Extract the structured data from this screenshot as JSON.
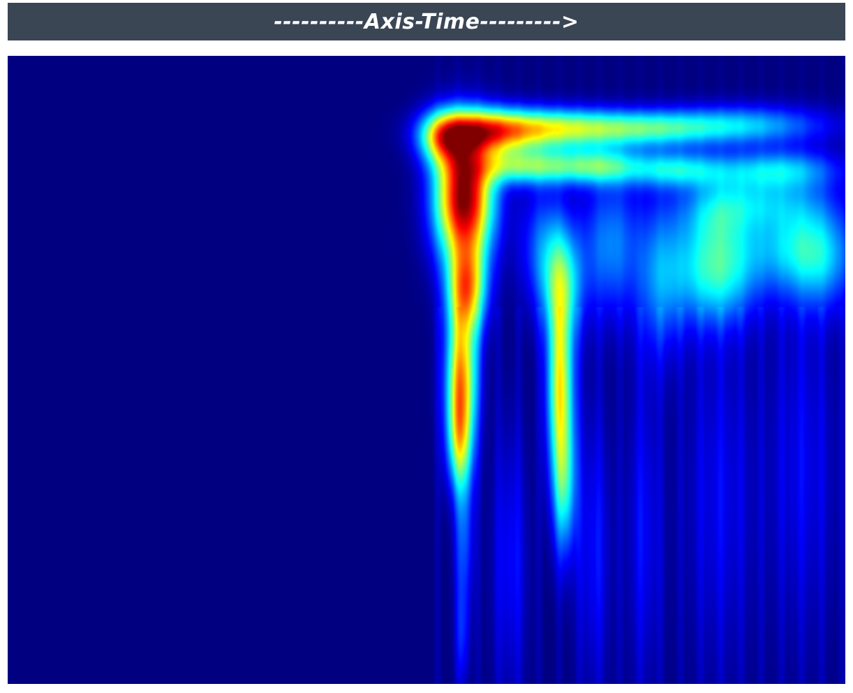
{
  "header": {
    "title": "----------Axis-Time--------->"
  },
  "chart_data": {
    "type": "heatmap",
    "title": "----------Axis-Time--------->",
    "xlabel": "",
    "ylabel": "",
    "colormap": "jet",
    "colors": {
      "background": "#00007f",
      "header": "#3a4654",
      "header_text": "#ffffff"
    },
    "grid": false,
    "legend": "none",
    "value_range": [
      0,
      1
    ],
    "xlim": [
      0,
      1
    ],
    "ylim": [
      0,
      1
    ],
    "components": [
      {
        "x": 0.545,
        "y": 0.225,
        "sx": 0.024,
        "sy": 0.07,
        "amp": 1.0
      },
      {
        "x": 0.548,
        "y": 0.37,
        "sx": 0.016,
        "sy": 0.05,
        "amp": 0.62
      },
      {
        "x": 0.542,
        "y": 0.5,
        "sx": 0.013,
        "sy": 0.07,
        "amp": 0.62
      },
      {
        "x": 0.54,
        "y": 0.61,
        "sx": 0.011,
        "sy": 0.06,
        "amp": 0.48
      },
      {
        "x": 0.545,
        "y": 0.76,
        "sx": 0.008,
        "sy": 0.09,
        "amp": 0.2
      },
      {
        "x": 0.543,
        "y": 0.93,
        "sx": 0.006,
        "sy": 0.06,
        "amp": 0.12
      },
      {
        "x": 0.57,
        "y": 0.12,
        "sx": 0.04,
        "sy": 0.025,
        "amp": 0.62
      },
      {
        "x": 0.52,
        "y": 0.13,
        "sx": 0.02,
        "sy": 0.03,
        "amp": 0.45
      },
      {
        "x": 0.65,
        "y": 0.115,
        "sx": 0.055,
        "sy": 0.022,
        "amp": 0.48
      },
      {
        "x": 0.76,
        "y": 0.115,
        "sx": 0.06,
        "sy": 0.02,
        "amp": 0.35
      },
      {
        "x": 0.88,
        "y": 0.11,
        "sx": 0.07,
        "sy": 0.022,
        "amp": 0.3
      },
      {
        "x": 0.61,
        "y": 0.175,
        "sx": 0.04,
        "sy": 0.02,
        "amp": 0.42
      },
      {
        "x": 0.7,
        "y": 0.175,
        "sx": 0.04,
        "sy": 0.02,
        "amp": 0.4
      },
      {
        "x": 0.8,
        "y": 0.18,
        "sx": 0.04,
        "sy": 0.02,
        "amp": 0.32
      },
      {
        "x": 0.92,
        "y": 0.18,
        "sx": 0.05,
        "sy": 0.022,
        "amp": 0.3
      },
      {
        "x": 0.66,
        "y": 0.52,
        "sx": 0.011,
        "sy": 0.11,
        "amp": 0.58
      },
      {
        "x": 0.662,
        "y": 0.36,
        "sx": 0.018,
        "sy": 0.06,
        "amp": 0.3
      },
      {
        "x": 0.665,
        "y": 0.69,
        "sx": 0.01,
        "sy": 0.08,
        "amp": 0.3
      },
      {
        "x": 0.64,
        "y": 0.3,
        "sx": 0.02,
        "sy": 0.07,
        "amp": 0.2
      },
      {
        "x": 0.72,
        "y": 0.3,
        "sx": 0.025,
        "sy": 0.08,
        "amp": 0.25
      },
      {
        "x": 0.78,
        "y": 0.35,
        "sx": 0.02,
        "sy": 0.09,
        "amp": 0.22
      },
      {
        "x": 0.845,
        "y": 0.34,
        "sx": 0.035,
        "sy": 0.06,
        "amp": 0.4
      },
      {
        "x": 0.845,
        "y": 0.25,
        "sx": 0.03,
        "sy": 0.04,
        "amp": 0.18
      },
      {
        "x": 0.93,
        "y": 0.3,
        "sx": 0.04,
        "sy": 0.05,
        "amp": 0.22
      },
      {
        "x": 0.97,
        "y": 0.32,
        "sx": 0.03,
        "sy": 0.06,
        "amp": 0.26
      },
      {
        "x": 0.9,
        "y": 0.23,
        "sx": 0.05,
        "sy": 0.03,
        "amp": 0.2
      },
      {
        "x": 0.6,
        "y": 0.8,
        "sx": 0.015,
        "sy": 0.15,
        "amp": 0.12
      },
      {
        "x": 0.7,
        "y": 0.78,
        "sx": 0.015,
        "sy": 0.16,
        "amp": 0.12
      },
      {
        "x": 0.76,
        "y": 0.75,
        "sx": 0.015,
        "sy": 0.18,
        "amp": 0.11
      },
      {
        "x": 0.85,
        "y": 0.7,
        "sx": 0.03,
        "sy": 0.2,
        "amp": 0.1
      },
      {
        "x": 0.95,
        "y": 0.65,
        "sx": 0.03,
        "sy": 0.2,
        "amp": 0.1
      }
    ]
  }
}
